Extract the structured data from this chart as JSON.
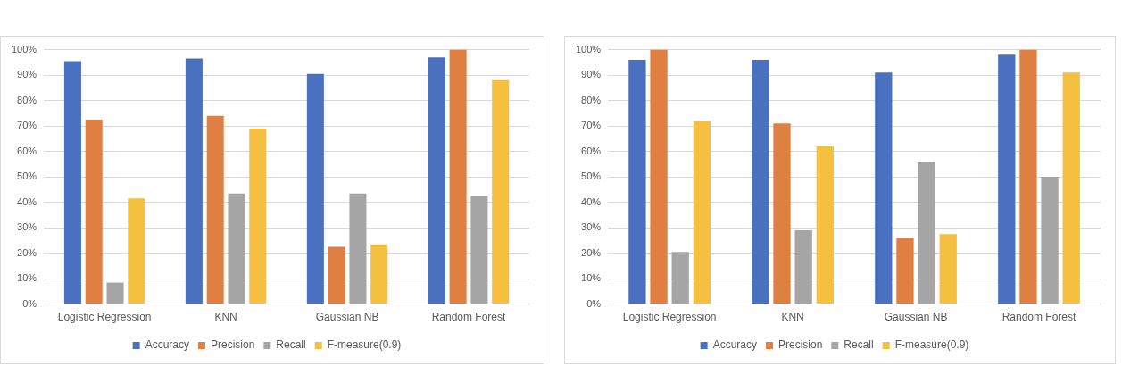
{
  "chart_data": [
    {
      "type": "bar",
      "categories": [
        "Logistic Regression",
        "KNN",
        "Gaussian NB",
        "Random Forest"
      ],
      "series": [
        {
          "name": "Accuracy",
          "color": "#4a70c0",
          "values": [
            95.5,
            96.5,
            90.5,
            97
          ]
        },
        {
          "name": "Precision",
          "color": "#e07f42",
          "values": [
            72.5,
            74,
            22.5,
            100
          ]
        },
        {
          "name": "Recall",
          "color": "#a5a5a5",
          "values": [
            8.5,
            43.5,
            43.5,
            42.5
          ]
        },
        {
          "name": "F-measure(0.9)",
          "color": "#f5bf3f",
          "values": [
            41.5,
            69,
            23.5,
            88
          ]
        }
      ],
      "ylim": [
        0,
        100
      ],
      "yticks": [
        {
          "value": 0,
          "label": "0%"
        },
        {
          "value": 10,
          "label": "10%"
        },
        {
          "value": 20,
          "label": "20%"
        },
        {
          "value": 30,
          "label": "30%"
        },
        {
          "value": 40,
          "label": "40%"
        },
        {
          "value": 50,
          "label": "50%"
        },
        {
          "value": 60,
          "label": "60%"
        },
        {
          "value": 70,
          "label": "70%"
        },
        {
          "value": 80,
          "label": "80%"
        },
        {
          "value": 90,
          "label": "90%"
        },
        {
          "value": 100,
          "label": "100%"
        }
      ],
      "grid": "y",
      "legend": "bottom"
    },
    {
      "type": "bar",
      "categories": [
        "Logistic Regression",
        "KNN",
        "Gaussian NB",
        "Random Forest"
      ],
      "series": [
        {
          "name": "Accuracy",
          "color": "#4a70c0",
          "values": [
            96,
            96,
            91,
            98
          ]
        },
        {
          "name": "Precision",
          "color": "#e07f42",
          "values": [
            100,
            71,
            26,
            100
          ]
        },
        {
          "name": "Recall",
          "color": "#a5a5a5",
          "values": [
            20.5,
            29,
            56,
            50
          ]
        },
        {
          "name": "F-measure(0.9)",
          "color": "#f5bf3f",
          "values": [
            72,
            62,
            27.5,
            91
          ]
        }
      ],
      "ylim": [
        0,
        100
      ],
      "yticks": [
        {
          "value": 0,
          "label": "0%"
        },
        {
          "value": 10,
          "label": "10%"
        },
        {
          "value": 20,
          "label": "20%"
        },
        {
          "value": 30,
          "label": "30%"
        },
        {
          "value": 40,
          "label": "40%"
        },
        {
          "value": 50,
          "label": "50%"
        },
        {
          "value": 60,
          "label": "60%"
        },
        {
          "value": 70,
          "label": "70%"
        },
        {
          "value": 80,
          "label": "80%"
        },
        {
          "value": 90,
          "label": "90%"
        },
        {
          "value": 100,
          "label": "100%"
        }
      ],
      "grid": "y",
      "legend": "bottom"
    }
  ]
}
